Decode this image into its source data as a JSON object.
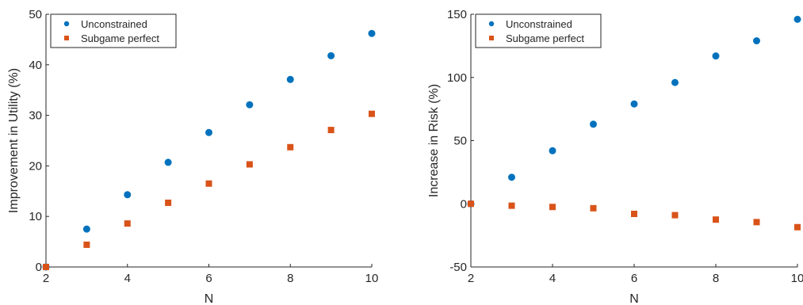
{
  "colors": {
    "unconstrained": "#0072BD",
    "subgame_perfect": "#D95319",
    "axis": "#262626"
  },
  "chart_data": [
    {
      "type": "scatter",
      "title": "",
      "xlabel": "N",
      "ylabel": "Improvement in Utility (%)",
      "xlim": [
        2,
        10
      ],
      "ylim": [
        0,
        50
      ],
      "xticks": [
        2,
        4,
        6,
        8,
        10
      ],
      "yticks": [
        0,
        10,
        20,
        30,
        40,
        50
      ],
      "legend": "top-left",
      "grid": false,
      "series": [
        {
          "name": "Unconstrained",
          "marker": "circle",
          "x": [
            2,
            3,
            4,
            5,
            6,
            7,
            8,
            9,
            10
          ],
          "y": [
            0,
            7.5,
            14.3,
            20.7,
            26.6,
            32.1,
            37.1,
            41.8,
            46.2
          ]
        },
        {
          "name": "Subgame perfect",
          "marker": "square",
          "x": [
            2,
            3,
            4,
            5,
            6,
            7,
            8,
            9,
            10
          ],
          "y": [
            0,
            4.4,
            8.6,
            12.7,
            16.5,
            20.3,
            23.7,
            27.1,
            30.3
          ]
        }
      ]
    },
    {
      "type": "scatter",
      "title": "",
      "xlabel": "N",
      "ylabel": "Increase in Risk (%)",
      "xlim": [
        2,
        10
      ],
      "ylim": [
        -50,
        150
      ],
      "xticks": [
        2,
        4,
        6,
        8,
        10
      ],
      "yticks": [
        -50,
        0,
        50,
        100,
        150
      ],
      "legend": "top-left",
      "grid": false,
      "series": [
        {
          "name": "Unconstrained",
          "marker": "circle",
          "x": [
            2,
            3,
            4,
            5,
            6,
            7,
            8,
            9,
            10
          ],
          "y": [
            0,
            21,
            42,
            63,
            79,
            96,
            117,
            129,
            146
          ]
        },
        {
          "name": "Subgame perfect",
          "marker": "square",
          "x": [
            2,
            3,
            4,
            5,
            6,
            7,
            8,
            9,
            10
          ],
          "y": [
            0,
            -1.5,
            -2.5,
            -3.5,
            -8,
            -9,
            -12.5,
            -14.5,
            -18.5
          ]
        }
      ]
    }
  ]
}
